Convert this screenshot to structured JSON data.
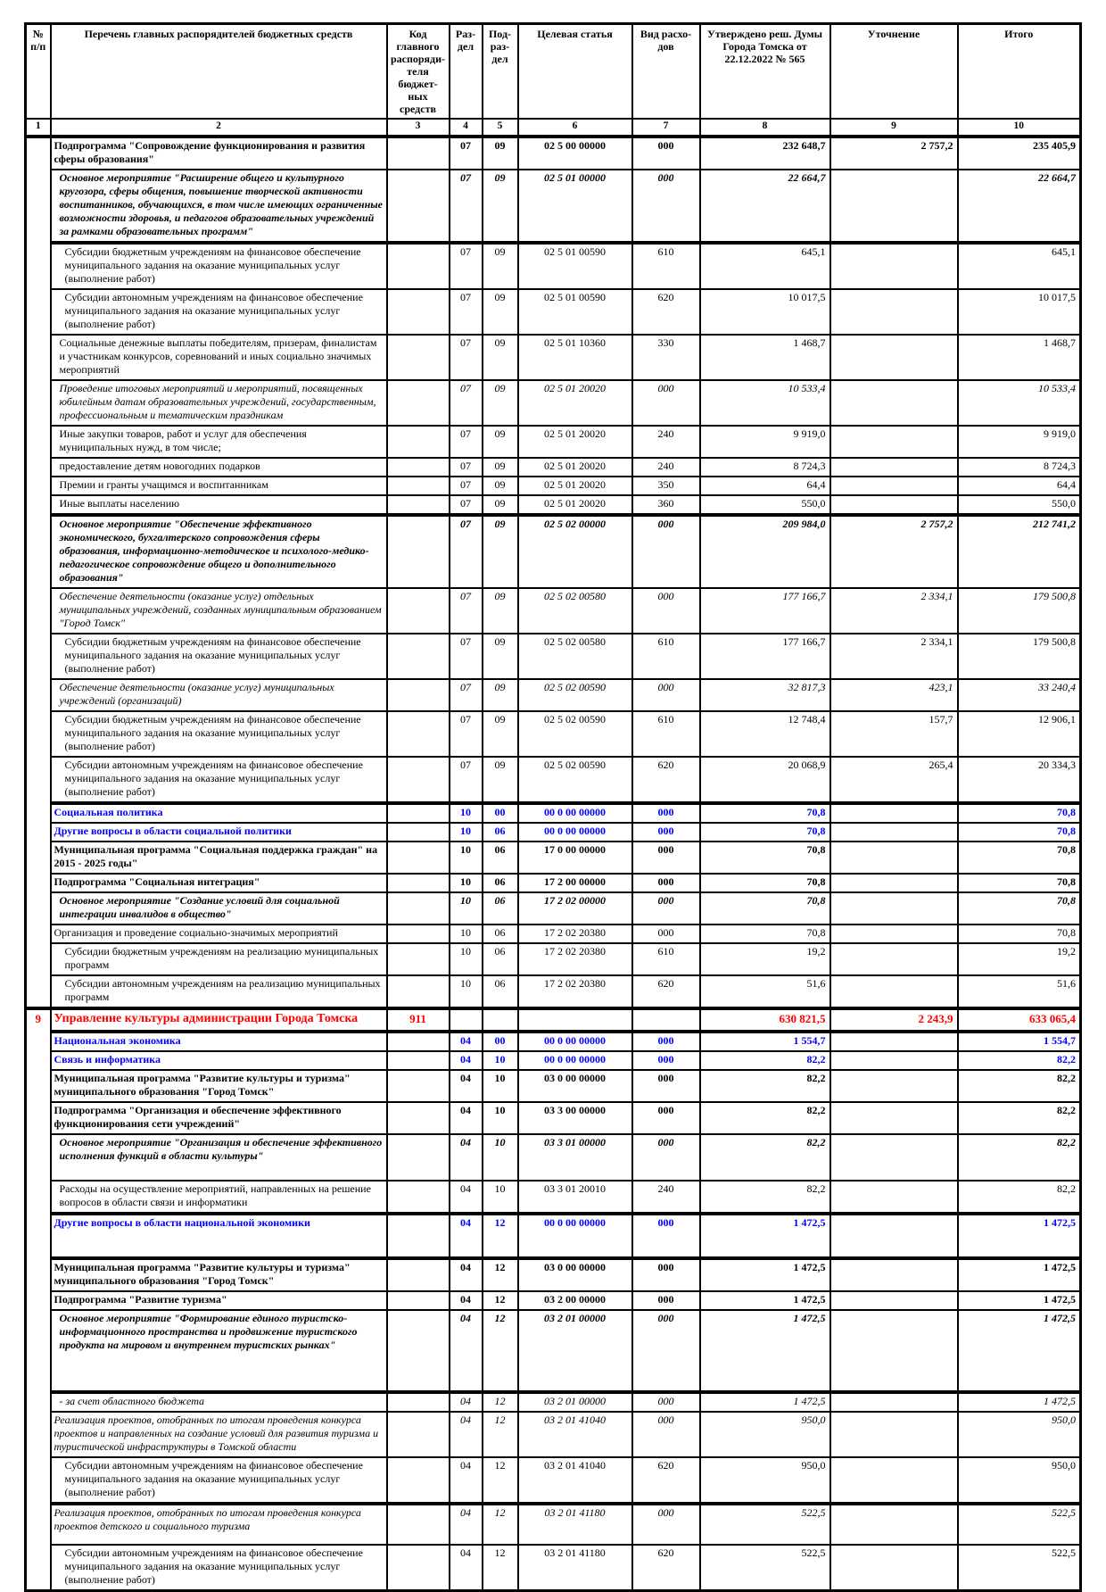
{
  "table": {
    "header_columns": [
      "№ п/п",
      "Перечень главных распорядителей бюджетных средств",
      "Код главного распоряди-теля бюджет-ных средств",
      "Раз-дел",
      "Под-раз-дел",
      "Целевая статья",
      "Вид расхо-дов",
      "Утверждено реш. Думы Города Томска от 22.12.2022 № 565",
      "Уточнение",
      "Итого"
    ],
    "column_numbers": [
      "1",
      "2",
      "3",
      "4",
      "5",
      "6",
      "7",
      "8",
      "9",
      "10"
    ],
    "colors": {
      "section_blue": "#0000ff",
      "main_row_red": "#ff0000"
    },
    "rows": [
      {
        "name": "Подпрограмма \"Сопровождение функционирования и развития сферы образования\"",
        "style": "bold",
        "rz": "07",
        "pr": "09",
        "csr": "02 5 00 00000",
        "vr": "000",
        "approved": "232 648,7",
        "adjust": "2 757,2",
        "total": "235 405,9",
        "num": "",
        "num_span": 24
      },
      {
        "name": "Основное мероприятие \"Расширение общего и культурного кругозора, сферы общения, повышение творческой активности воспитанников, обучающихся, в том числе имеющих ограниченные возможности здоровья, и педагогов образовательных учреждений за рамками образовательных программ\"",
        "style": "bolditalic",
        "indent": 1,
        "rz": "07",
        "pr": "09",
        "csr": "02 5 01 00000",
        "vr": "000",
        "approved": "22 664,7",
        "adjust": "",
        "total": "22 664,7"
      },
      {
        "name": "Субсидии бюджетным учреждениям на финансовое обеспечение муниципального задания на оказание муниципальных услуг (выполнение работ)",
        "style": "plain",
        "indent": 2,
        "thick": true,
        "rz": "07",
        "pr": "09",
        "csr": "02 5 01 00590",
        "vr": "610",
        "approved": "645,1",
        "adjust": "",
        "total": "645,1"
      },
      {
        "name": "Субсидии автономным учреждениям на финансовое обеспечение муниципального задания на оказание муниципальных услуг (выполнение работ)",
        "style": "plain",
        "indent": 2,
        "rz": "07",
        "pr": "09",
        "csr": "02 5 01 00590",
        "vr": "620",
        "approved": "10 017,5",
        "adjust": "",
        "total": "10 017,5"
      },
      {
        "name": "Социальные денежные выплаты победителям, призерам, финалистам и участникам конкурсов, соревнований и иных социально значимых мероприятий",
        "style": "plain",
        "indent": 1,
        "rz": "07",
        "pr": "09",
        "csr": "02 5 01 10360",
        "vr": "330",
        "approved": "1 468,7",
        "adjust": "",
        "total": "1 468,7"
      },
      {
        "name": "Проведение итоговых мероприятий и мероприятий, посвященных юбилейным датам образовательных учреждений, государственным, профессиональным и тематическим праздникам",
        "style": "italic",
        "indent": 1,
        "rz": "07",
        "pr": "09",
        "csr": "02 5 01 20020",
        "vr": "000",
        "approved": "10 533,4",
        "adjust": "",
        "total": "10 533,4"
      },
      {
        "name": "Иные закупки товаров, работ и услуг для обеспечения муниципальных нужд, в том числе;",
        "style": "plain",
        "indent": 1,
        "rz": "07",
        "pr": "09",
        "csr": "02 5 01 20020",
        "vr": "240",
        "approved": "9 919,0",
        "adjust": "",
        "total": "9 919,0"
      },
      {
        "name": "предоставление детям новогодних подарков",
        "style": "plain",
        "indent": 1,
        "rz": "07",
        "pr": "09",
        "csr": "02 5 01 20020",
        "vr": "240",
        "approved": "8 724,3",
        "adjust": "",
        "total": "8 724,3"
      },
      {
        "name": "Премии и гранты учащимся и воспитанникам",
        "style": "plain",
        "indent": 1,
        "rz": "07",
        "pr": "09",
        "csr": "02 5 01 20020",
        "vr": "350",
        "approved": "64,4",
        "adjust": "",
        "total": "64,4"
      },
      {
        "name": "Иные выплаты населению",
        "style": "plain",
        "indent": 1,
        "rz": "07",
        "pr": "09",
        "csr": "02 5 01 20020",
        "vr": "360",
        "approved": "550,0",
        "adjust": "",
        "total": "550,0"
      },
      {
        "name": "Основное мероприятие \"Обеспечение эффективного экономического, бухгалтерского сопровождения сферы образования, информационно-методическое и психолого-медико-педагогическое сопровождение общего и дополнительного образования\"",
        "style": "bolditalic",
        "indent": 1,
        "thick": true,
        "rz": "07",
        "pr": "09",
        "csr": "02 5 02 00000",
        "vr": "000",
        "approved": "209 984,0",
        "adjust": "2 757,2",
        "total": "212 741,2"
      },
      {
        "name": "Обеспечение деятельности (оказание услуг) отдельных муниципальных учреждений, созданных муниципальным образованием \"Город Томск\"",
        "style": "italic",
        "indent": 1,
        "rz": "07",
        "pr": "09",
        "csr": "02 5 02 00580",
        "vr": "000",
        "approved": "177 166,7",
        "adjust": "2 334,1",
        "total": "179 500,8"
      },
      {
        "name": "Субсидии бюджетным учреждениям на финансовое обеспечение муниципального задания на оказание муниципальных услуг (выполнение работ)",
        "style": "plain",
        "indent": 2,
        "rz": "07",
        "pr": "09",
        "csr": "02 5 02 00580",
        "vr": "610",
        "approved": "177 166,7",
        "adjust": "2 334,1",
        "total": "179 500,8"
      },
      {
        "name": "Обеспечение деятельности (оказание услуг) муниципальных учреждений (организаций)",
        "style": "italic",
        "indent": 1,
        "rz": "07",
        "pr": "09",
        "csr": "02 5 02 00590",
        "vr": "000",
        "approved": "32 817,3",
        "adjust": "423,1",
        "total": "33 240,4"
      },
      {
        "name": "Субсидии бюджетным учреждениям на финансовое обеспечение муниципального задания на оказание муниципальных услуг (выполнение работ)",
        "style": "plain",
        "indent": 2,
        "rz": "07",
        "pr": "09",
        "csr": "02 5 02 00590",
        "vr": "610",
        "approved": "12 748,4",
        "adjust": "157,7",
        "total": "12 906,1"
      },
      {
        "name": "Субсидии автономным учреждениям на финансовое обеспечение муниципального задания на оказание муниципальных услуг (выполнение работ)",
        "style": "plain",
        "indent": 2,
        "rz": "07",
        "pr": "09",
        "csr": "02 5 02 00590",
        "vr": "620",
        "approved": "20 068,9",
        "adjust": "265,4",
        "total": "20 334,3"
      },
      {
        "name": "Социальная политика",
        "style": "bold",
        "color": "blue",
        "thick": true,
        "rz": "10",
        "pr": "00",
        "csr": "00 0 00 00000",
        "vr": "000",
        "approved": "70,8",
        "adjust": "",
        "total": "70,8"
      },
      {
        "name": "Другие вопросы в области социальной политики",
        "style": "bold",
        "color": "blue",
        "rz": "10",
        "pr": "06",
        "csr": "00 0 00 00000",
        "vr": "000",
        "approved": "70,8",
        "adjust": "",
        "total": "70,8"
      },
      {
        "name": "Муниципальная программа \"Социальная поддержка граждан\" на 2015 - 2025 годы\"",
        "style": "bold",
        "rz": "10",
        "pr": "06",
        "csr": "17 0 00 00000",
        "vr": "000",
        "approved": "70,8",
        "adjust": "",
        "total": "70,8"
      },
      {
        "name": "Подпрограмма \"Социальная интеграция\"",
        "style": "bold",
        "rz": "10",
        "pr": "06",
        "csr": "17 2 00 00000",
        "vr": "000",
        "approved": "70,8",
        "adjust": "",
        "total": "70,8"
      },
      {
        "name": "Основное мероприятие \"Создание условий для социальной интеграции инвалидов в общество\"",
        "style": "bolditalic",
        "indent": 1,
        "rz": "10",
        "pr": "06",
        "csr": "17 2 02 00000",
        "vr": "000",
        "approved": "70,8",
        "adjust": "",
        "total": "70,8"
      },
      {
        "name": "Организация и проведение социально-значимых мероприятий",
        "style": "plain",
        "rz": "10",
        "pr": "06",
        "csr": "17 2 02 20380",
        "vr": "000",
        "approved": "70,8",
        "adjust": "",
        "total": "70,8"
      },
      {
        "name": "Субсидии бюджетным учреждениям на реализацию муниципальных программ",
        "style": "plain",
        "indent": 2,
        "rz": "10",
        "pr": "06",
        "csr": "17 2 02 20380",
        "vr": "610",
        "approved": "19,2",
        "adjust": "",
        "total": "19,2"
      },
      {
        "name": "Субсидии автономным учреждениям на реализацию муниципальных программ",
        "style": "plain",
        "indent": 2,
        "rz": "10",
        "pr": "06",
        "csr": "17 2 02 20380",
        "vr": "620",
        "approved": "51,6",
        "adjust": "",
        "total": "51,6"
      },
      {
        "name": "Управление культуры администрации Города Томска",
        "style": "bold",
        "color": "red",
        "thick": true,
        "num": "9",
        "num_span": 16,
        "code": "911",
        "rz": "",
        "pr": "",
        "csr": "",
        "vr": "",
        "approved": "630 821,5",
        "adjust": "2 243,9",
        "total": "633 065,4"
      },
      {
        "name": "Национальная экономика",
        "style": "bold",
        "color": "blue",
        "thick": true,
        "rz": "04",
        "pr": "00",
        "csr": "00 0 00 00000",
        "vr": "000",
        "approved": "1 554,7",
        "adjust": "",
        "total": "1 554,7"
      },
      {
        "name": "Связь и информатика",
        "style": "bold",
        "color": "blue",
        "rz": "04",
        "pr": "10",
        "csr": "00 0 00 00000",
        "vr": "000",
        "approved": "82,2",
        "adjust": "",
        "total": "82,2"
      },
      {
        "name": "Муниципальная программа \"Развитие культуры и туризма\" муниципального образования \"Город Томск\"",
        "style": "bold",
        "rz": "04",
        "pr": "10",
        "csr": "03 0 00 00000",
        "vr": "000",
        "approved": "82,2",
        "adjust": "",
        "total": "82,2"
      },
      {
        "name": "Подпрограмма \"Организация и обеспечение эффективного функционирования сети учреждений\"",
        "style": "bold",
        "rz": "04",
        "pr": "10",
        "csr": "03 3 00 00000",
        "vr": "000",
        "approved": "82,2",
        "adjust": "",
        "total": "82,2"
      },
      {
        "name": "Основное мероприятие \"Организация и обеспечение эффективного исполнения функций в области культуры\"",
        "style": "bolditalic",
        "indent": 1,
        "minh": 52,
        "rz": "04",
        "pr": "10",
        "csr": "03 3 01 00000",
        "vr": "000",
        "approved": "82,2",
        "adjust": "",
        "total": "82,2"
      },
      {
        "name": "Расходы на осуществление мероприятий, направленных на решение вопросов в области связи и информатики",
        "style": "plain",
        "indent": 1,
        "rz": "04",
        "pr": "10",
        "csr": "03 3 01 20010",
        "vr": "240",
        "approved": "82,2",
        "adjust": "",
        "total": "82,2"
      },
      {
        "name": "Другие вопросы в области национальной экономики",
        "style": "bold",
        "color": "blue",
        "thick": true,
        "minh": 50,
        "rz": "04",
        "pr": "12",
        "csr": "00 0 00 00000",
        "vr": "000",
        "approved": "1 472,5",
        "adjust": "",
        "total": "1 472,5"
      },
      {
        "name": "Муниципальная программа \"Развитие культуры и туризма\" муниципального образования \"Город Томск\"",
        "style": "bold",
        "thick": true,
        "rz": "04",
        "pr": "12",
        "csr": "03 0 00 00000",
        "vr": "000",
        "approved": "1 472,5",
        "adjust": "",
        "total": "1 472,5"
      },
      {
        "name": "Подпрограмма \"Развитие туризма\"",
        "style": "bold",
        "rz": "04",
        "pr": "12",
        "csr": "03 2 00 00000",
        "vr": "000",
        "approved": "1 472,5",
        "adjust": "",
        "total": "1 472,5"
      },
      {
        "name": "Основное мероприятие \"Формирование единого туристско-информационного пространства и продвижение туристского продукта на мировом и внутреннем туристских рынках\"",
        "style": "bolditalic",
        "indent": 1,
        "minh": 92,
        "rz": "04",
        "pr": "12",
        "csr": "03 2 01 00000",
        "vr": "000",
        "approved": "1 472,5",
        "adjust": "",
        "total": "1 472,5"
      },
      {
        "name": "- за счет областного бюджета",
        "style": "italic",
        "indent": 1,
        "thick": true,
        "rz": "04",
        "pr": "12",
        "csr": "03 2 01 00000",
        "vr": "000",
        "approved": "1 472,5",
        "adjust": "",
        "total": "1 472,5"
      },
      {
        "name": "Реализация проектов, отобранных по итогам проведения конкурса проектов и направленных на создание условий для развития туризма и туристической инфраструктуры в Томской области",
        "style": "italic",
        "rz": "04",
        "pr": "12",
        "csr": "03 2 01 41040",
        "vr": "000",
        "approved": "950,0",
        "adjust": "",
        "total": "950,0"
      },
      {
        "name": "Субсидии автономным учреждениям на финансовое обеспечение муниципального задания на оказание муниципальных услуг (выполнение работ)",
        "style": "plain",
        "indent": 2,
        "rz": "04",
        "pr": "12",
        "csr": "03 2 01 41040",
        "vr": "620",
        "approved": "950,0",
        "adjust": "",
        "total": "950,0"
      },
      {
        "name": "Реализация проектов, отобранных по итогам проведения конкурса проектов детского и социального туризма",
        "style": "italic",
        "thick": true,
        "minh": 46,
        "rz": "04",
        "pr": "12",
        "csr": "03 2 01 41180",
        "vr": "000",
        "approved": "522,5",
        "adjust": "",
        "total": "522,5"
      },
      {
        "name": "Субсидии автономным учреждениям на финансовое обеспечение муниципального задания на оказание муниципальных услуг (выполнение работ)",
        "style": "plain",
        "indent": 2,
        "rz": "04",
        "pr": "12",
        "csr": "03 2 01 41180",
        "vr": "620",
        "approved": "522,5",
        "adjust": "",
        "total": "522,5"
      }
    ]
  }
}
